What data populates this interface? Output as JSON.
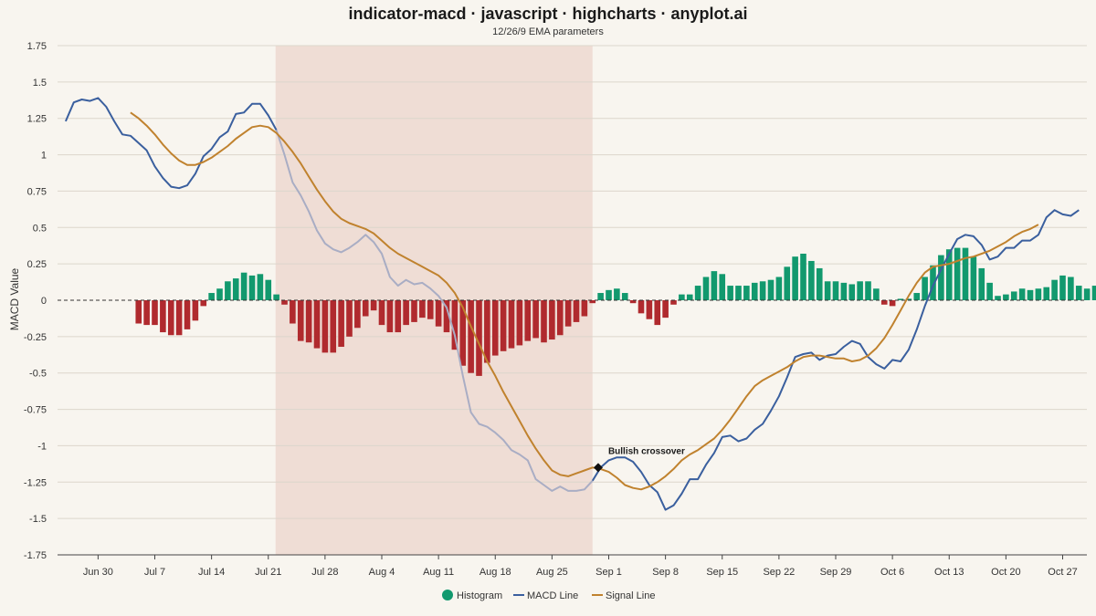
{
  "chart_data": {
    "type": "line",
    "title": "indicator-macd · javascript · highcharts · anyplot.ai",
    "subtitle": "12/26/9 EMA parameters",
    "ylabel": "MACD Value",
    "xlabel": "",
    "ylim": [
      -1.75,
      1.75
    ],
    "yticks": [
      "1.75",
      "1.5",
      "1.25",
      "1",
      "0.75",
      "0.5",
      "0.25",
      "0",
      "-0.25",
      "-0.5",
      "-0.75",
      "-1",
      "-1.25",
      "-1.5",
      "-1.75"
    ],
    "ytick_values": [
      1.75,
      1.5,
      1.25,
      1,
      0.75,
      0.5,
      0.25,
      0,
      -0.25,
      -0.5,
      -0.75,
      -1,
      -1.25,
      -1.5,
      -1.75
    ],
    "x_start": "Jun 25",
    "xticks": [
      {
        "label": "Jun 30",
        "day": 5
      },
      {
        "label": "Jul 7",
        "day": 12
      },
      {
        "label": "Jul 14",
        "day": 19
      },
      {
        "label": "Jul 21",
        "day": 26
      },
      {
        "label": "Jul 28",
        "day": 33
      },
      {
        "label": "Aug 4",
        "day": 40
      },
      {
        "label": "Aug 11",
        "day": 47
      },
      {
        "label": "Aug 18",
        "day": 54
      },
      {
        "label": "Aug 25",
        "day": 61
      },
      {
        "label": "Sep 1",
        "day": 68
      },
      {
        "label": "Sep 8",
        "day": 75
      },
      {
        "label": "Sep 15",
        "day": 82
      },
      {
        "label": "Sep 22",
        "day": 89
      },
      {
        "label": "Sep 29",
        "day": 96
      },
      {
        "label": "Oct 6",
        "day": 103
      },
      {
        "label": "Oct 13",
        "day": 110
      },
      {
        "label": "Oct 20",
        "day": 117
      },
      {
        "label": "Oct 27",
        "day": 124
      }
    ],
    "shaded_band": {
      "from_day": 26.9,
      "to_day": 66
    },
    "series": [
      {
        "name": "MACD Line",
        "color": "#3a5f9e",
        "start_day": 1,
        "values": [
          1.23,
          1.36,
          1.38,
          1.37,
          1.39,
          1.33,
          1.23,
          1.14,
          1.13,
          1.08,
          1.03,
          0.92,
          0.84,
          0.78,
          0.77,
          0.79,
          0.87,
          0.99,
          1.04,
          1.12,
          1.16,
          1.28,
          1.29,
          1.35,
          1.35,
          1.27,
          1.17,
          1.0,
          0.81,
          0.72,
          0.61,
          0.48,
          0.39,
          0.35,
          0.33,
          0.36,
          0.4,
          0.45,
          0.4,
          0.32,
          0.16,
          0.1,
          0.14,
          0.11,
          0.12,
          0.08,
          0.03,
          -0.05,
          -0.24,
          -0.52,
          -0.77,
          -0.85,
          -0.87,
          -0.91,
          -0.96,
          -1.03,
          -1.06,
          -1.1,
          -1.23,
          -1.27,
          -1.31,
          -1.28,
          -1.31,
          -1.31,
          -1.3,
          -1.24,
          -1.15,
          -1.1,
          -1.08,
          -1.08,
          -1.11,
          -1.18,
          -1.27,
          -1.32,
          -1.44,
          -1.41,
          -1.33,
          -1.23,
          -1.23,
          -1.13,
          -1.05,
          -0.94,
          -0.93,
          -0.97,
          -0.95,
          -0.89,
          -0.85,
          -0.76,
          -0.66,
          -0.53,
          -0.39,
          -0.37,
          -0.36,
          -0.41,
          -0.38,
          -0.37,
          -0.32,
          -0.28,
          -0.3,
          -0.39,
          -0.44,
          -0.47,
          -0.41,
          -0.42,
          -0.34,
          -0.2,
          -0.04,
          0.1,
          0.21,
          0.32,
          0.42,
          0.45,
          0.44,
          0.38,
          0.28,
          0.3,
          0.36,
          0.36,
          0.41,
          0.41,
          0.45,
          0.57,
          0.62,
          0.59,
          0.58,
          0.62
        ]
      },
      {
        "name": "Signal Line",
        "color": "#c0822e",
        "start_day": 9,
        "values": [
          1.29,
          1.25,
          1.2,
          1.14,
          1.07,
          1.01,
          0.96,
          0.93,
          0.93,
          0.95,
          0.98,
          1.02,
          1.06,
          1.11,
          1.15,
          1.19,
          1.2,
          1.19,
          1.15,
          1.09,
          1.02,
          0.94,
          0.85,
          0.76,
          0.68,
          0.61,
          0.56,
          0.53,
          0.51,
          0.49,
          0.46,
          0.41,
          0.36,
          0.32,
          0.29,
          0.26,
          0.23,
          0.2,
          0.17,
          0.12,
          0.05,
          -0.05,
          -0.18,
          -0.3,
          -0.42,
          -0.52,
          -0.63,
          -0.73,
          -0.83,
          -0.93,
          -1.02,
          -1.1,
          -1.17,
          -1.2,
          -1.21,
          -1.19,
          -1.17,
          -1.15,
          -1.16,
          -1.18,
          -1.22,
          -1.27,
          -1.29,
          -1.3,
          -1.28,
          -1.25,
          -1.21,
          -1.16,
          -1.1,
          -1.06,
          -1.03,
          -0.99,
          -0.95,
          -0.89,
          -0.82,
          -0.74,
          -0.66,
          -0.59,
          -0.55,
          -0.52,
          -0.49,
          -0.46,
          -0.42,
          -0.39,
          -0.38,
          -0.38,
          -0.39,
          -0.4,
          -0.4,
          -0.42,
          -0.41,
          -0.38,
          -0.33,
          -0.26,
          -0.17,
          -0.07,
          0.03,
          0.12,
          0.19,
          0.23,
          0.24,
          0.25,
          0.27,
          0.29,
          0.3,
          0.32,
          0.34,
          0.37,
          0.4,
          0.44,
          0.47,
          0.49,
          0.52
        ]
      },
      {
        "name": "Histogram",
        "type": "column",
        "positive_color": "#12996e",
        "negative_color": "#b02a2e",
        "start_day": 10,
        "values": [
          -0.16,
          -0.17,
          -0.17,
          -0.22,
          -0.24,
          -0.24,
          -0.2,
          -0.14,
          -0.04,
          0.05,
          0.08,
          0.13,
          0.15,
          0.19,
          0.17,
          0.18,
          0.14,
          0.04,
          -0.03,
          -0.16,
          -0.28,
          -0.29,
          -0.33,
          -0.36,
          -0.36,
          -0.32,
          -0.25,
          -0.19,
          -0.11,
          -0.07,
          -0.17,
          -0.22,
          -0.22,
          -0.17,
          -0.15,
          -0.12,
          -0.13,
          -0.18,
          -0.22,
          -0.34,
          -0.45,
          -0.5,
          -0.52,
          -0.43,
          -0.38,
          -0.35,
          -0.33,
          -0.31,
          -0.28,
          -0.26,
          -0.29,
          -0.27,
          -0.24,
          -0.18,
          -0.15,
          -0.11,
          -0.02,
          0.05,
          0.07,
          0.08,
          0.05,
          -0.02,
          -0.09,
          -0.13,
          -0.17,
          -0.12,
          -0.03,
          0.04,
          0.04,
          0.1,
          0.16,
          0.2,
          0.18,
          0.1,
          0.1,
          0.1,
          0.12,
          0.13,
          0.14,
          0.16,
          0.23,
          0.3,
          0.32,
          0.27,
          0.22,
          0.13,
          0.13,
          0.12,
          0.11,
          0.13,
          0.13,
          0.08,
          -0.03,
          -0.04,
          0.01,
          0.01,
          0.05,
          0.16,
          0.24,
          0.31,
          0.35,
          0.36,
          0.36,
          0.3,
          0.22,
          0.12,
          0.03,
          0.04,
          0.06,
          0.08,
          0.07,
          0.08,
          0.09,
          0.14,
          0.17,
          0.16,
          0.1,
          0.08,
          0.1
        ]
      }
    ],
    "annotation": {
      "text": "Bullish crossover",
      "day": 66.7,
      "value": -1.15
    },
    "legend": {
      "placement": "bottom-center",
      "items": [
        "Histogram",
        "MACD Line",
        "Signal Line"
      ]
    },
    "grid": true,
    "colors": {
      "band": "#efddd5",
      "zero_line": "#333333",
      "grid": "#dcd6cc",
      "axis": "#444444"
    }
  }
}
